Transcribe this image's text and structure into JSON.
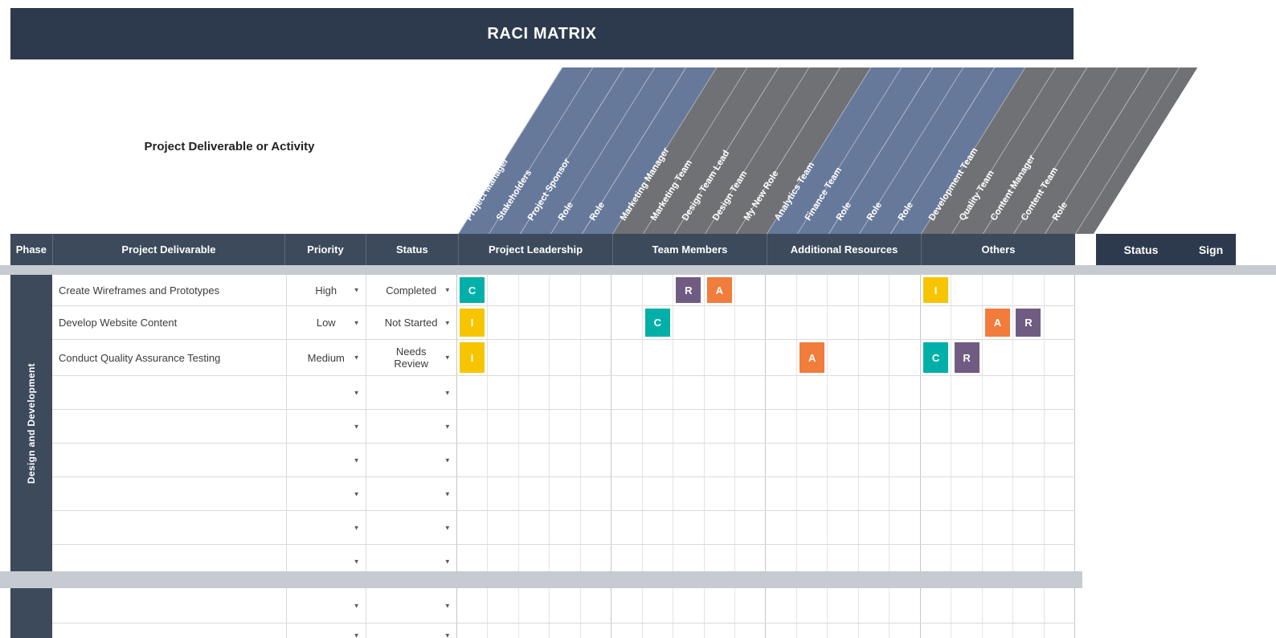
{
  "title": "RACI MATRIX",
  "activity_header": "Project Deliverable or Activity",
  "table_headers": {
    "phase": "Phase",
    "deliverable": "Project Delivarable",
    "priority": "Priority",
    "status": "Status"
  },
  "right_headers": {
    "status": "Status",
    "sign": "Sign"
  },
  "phase_label": "Design and Development",
  "groups": [
    {
      "label": "Project Leadership",
      "band": "blue",
      "roles": [
        "Project Manager",
        "Stakeholders",
        "Project Sponsor",
        "Role",
        "Role"
      ]
    },
    {
      "label": "Team Members",
      "band": "gray",
      "roles": [
        "Marketing Manager",
        "Marketing Team",
        "Design Team Lead",
        "Design Team",
        "My New Role"
      ]
    },
    {
      "label": "Additional Resources",
      "band": "blue",
      "roles": [
        "Analytics Team",
        "Finance Team",
        "Role",
        "Role",
        "Role"
      ]
    },
    {
      "label": "Others",
      "band": "gray",
      "roles": [
        "Development Team",
        "Quality Team",
        "Content Manager",
        "Content Team",
        "Role"
      ]
    }
  ],
  "rows": [
    {
      "deliverable": "Create Wireframes and Prototypes",
      "priority": "High",
      "status": "Completed",
      "raci": {
        "0": "C",
        "7": "R",
        "8": "A",
        "15": "I"
      }
    },
    {
      "deliverable": "Develop Website Content",
      "priority": "Low",
      "status": "Not Started",
      "raci": {
        "0": "I",
        "6": "C",
        "17": "A",
        "18": "R"
      }
    },
    {
      "deliverable": "Conduct Quality Assurance Testing",
      "priority": "Medium",
      "status": "Needs Review",
      "raci": {
        "0": "I",
        "11": "A",
        "15": "C",
        "16": "R"
      }
    },
    {
      "deliverable": "",
      "priority": "",
      "status": "",
      "raci": {}
    },
    {
      "deliverable": "",
      "priority": "",
      "status": "",
      "raci": {}
    },
    {
      "deliverable": "",
      "priority": "",
      "status": "",
      "raci": {}
    },
    {
      "deliverable": "",
      "priority": "",
      "status": "",
      "raci": {}
    },
    {
      "deliverable": "",
      "priority": "",
      "status": "",
      "raci": {}
    },
    {
      "deliverable": "",
      "priority": "",
      "status": "",
      "raci": {}
    }
  ],
  "colors": {
    "navy": "#2d3a4e",
    "header": "#3d4a5c",
    "band_blue": "#66799b",
    "band_gray": "#707174",
    "strip": "#c6cbd1",
    "grid_line": "#e4e4e4",
    "grid_strong": "#c3c7cc",
    "row_line": "#dadada",
    "chip_c": "#00b0a8",
    "chip_r": "#705c82",
    "chip_a": "#f17c3b",
    "chip_i": "#f6c500"
  }
}
